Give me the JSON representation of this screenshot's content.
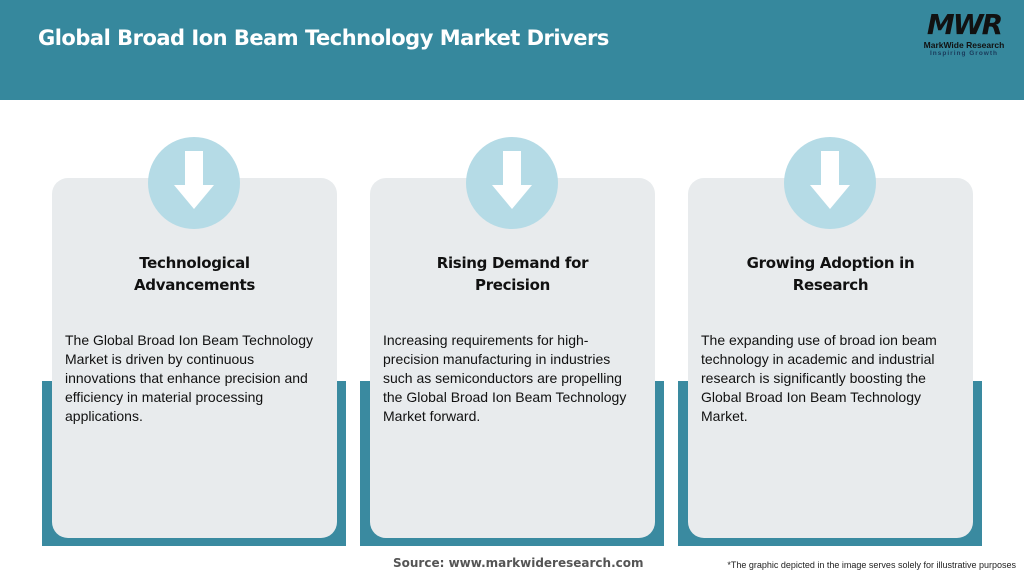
{
  "header": {
    "title": "Global Broad Ion Beam Technology Market Drivers",
    "logo": {
      "mark": "MWR",
      "name": "MarkWide Research",
      "tagline": "Inspiring Growth"
    }
  },
  "colors": {
    "header": "#36889d",
    "accent": "#3a8aa0",
    "card": "#e8ebed",
    "circle": "#b5dbe6"
  },
  "cards": [
    {
      "icon": "arrow-down-icon",
      "title": "Technological Advancements",
      "text": "The Global Broad Ion Beam Technology Market is driven by continuous innovations that enhance precision and efficiency in material processing applications."
    },
    {
      "icon": "arrow-down-icon",
      "title": "Rising Demand for Precision",
      "text": "Increasing requirements for high-precision manufacturing in industries such as semiconductors are propelling the Global Broad Ion Beam Technology Market forward."
    },
    {
      "icon": "arrow-down-icon",
      "title": "Growing Adoption in Research",
      "text": "The expanding use of broad ion beam technology in academic and industrial research is significantly boosting the Global Broad Ion Beam Technology Market."
    }
  ],
  "footer": {
    "source": "Source: www.markwideresearch.com",
    "note": "*The graphic depicted in the image serves solely for illustrative purposes"
  }
}
